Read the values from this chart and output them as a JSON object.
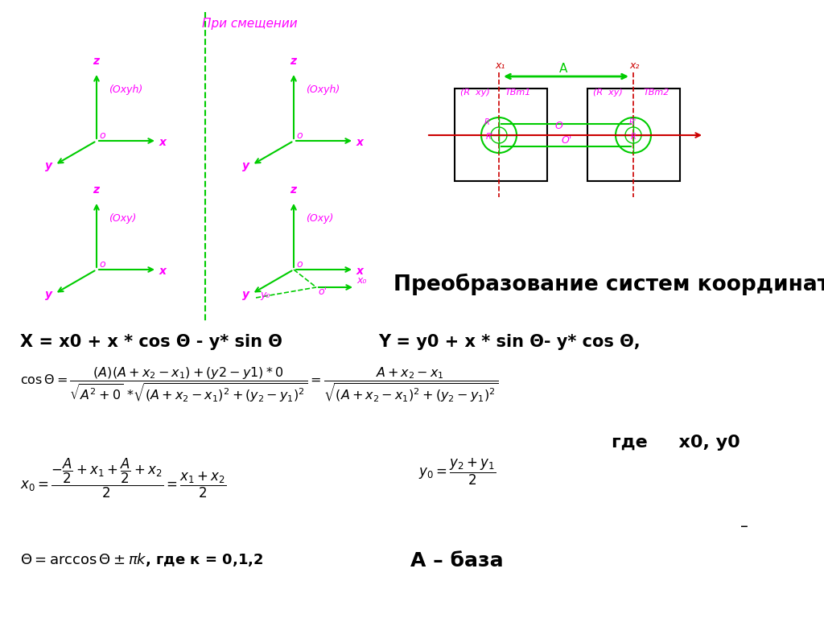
{
  "title_top": "При смещении",
  "title_main": "Преобразование систем координат",
  "eq1": "X = x0 + x * cos Θ - y* sin Θ",
  "eq2": "Y = y0 + x * sin Θ- y* cos Θ,",
  "text_gde": "где     x0, y0",
  "text_baza": "A – база",
  "text_dash": "–",
  "magenta": "#FF00FF",
  "green": "#00CC00",
  "red": "#CC0000",
  "black": "#000000",
  "dashed_green": "#00CC00"
}
